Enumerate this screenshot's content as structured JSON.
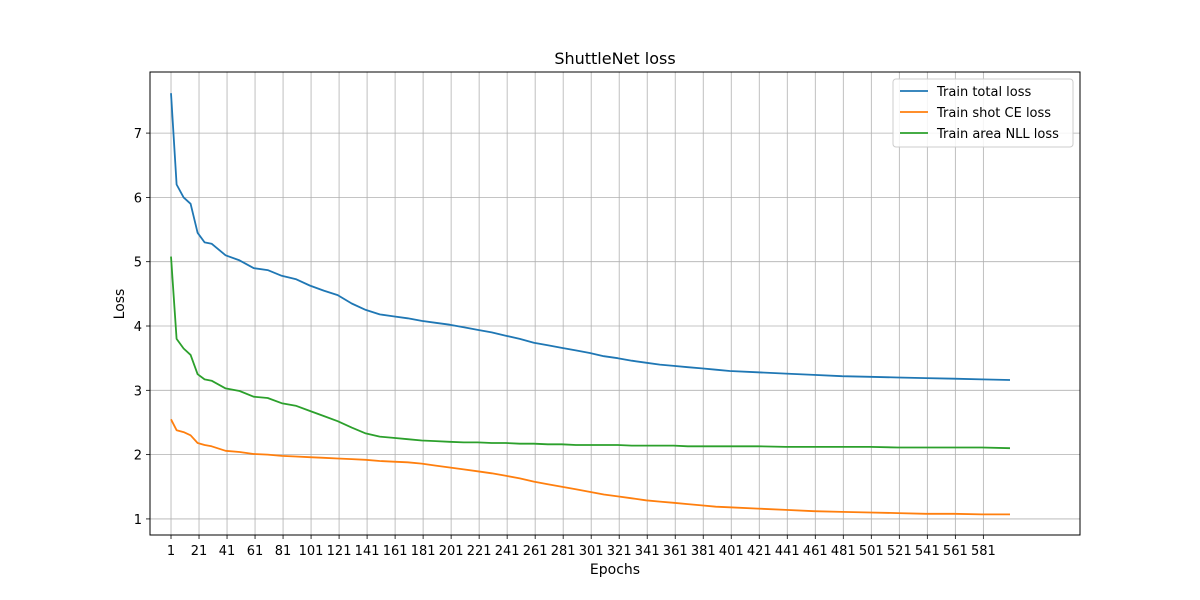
{
  "chart_data": {
    "type": "line",
    "title": "ShuttleNet loss",
    "xlabel": "Epochs",
    "ylabel": "Loss",
    "xlim": [
      -14,
      650
    ],
    "ylim": [
      0.75,
      7.95
    ],
    "grid": true,
    "legend_position": "top-right",
    "x_ticks": [
      "1",
      "21",
      "41",
      "61",
      "81",
      "101",
      "121",
      "141",
      "161",
      "181",
      "201",
      "221",
      "241",
      "261",
      "281",
      "301",
      "321",
      "341",
      "361",
      "381",
      "401",
      "421",
      "441",
      "461",
      "481",
      "501",
      "521",
      "541",
      "561",
      "581"
    ],
    "y_ticks": [
      "1",
      "2",
      "3",
      "4",
      "5",
      "6",
      "7"
    ],
    "x": [
      1,
      5,
      10,
      15,
      20,
      25,
      30,
      40,
      50,
      60,
      70,
      80,
      90,
      100,
      110,
      120,
      130,
      140,
      150,
      160,
      170,
      180,
      190,
      200,
      210,
      220,
      230,
      240,
      250,
      260,
      270,
      280,
      290,
      300,
      310,
      320,
      330,
      340,
      350,
      360,
      370,
      380,
      390,
      400,
      420,
      440,
      460,
      480,
      500,
      520,
      540,
      560,
      580,
      600
    ],
    "series": [
      {
        "name": "Train total loss",
        "color": "#1f77b4",
        "values": [
          7.62,
          6.2,
          6.0,
          5.9,
          5.45,
          5.3,
          5.28,
          5.1,
          5.02,
          4.9,
          4.87,
          4.78,
          4.73,
          4.63,
          4.55,
          4.48,
          4.35,
          4.25,
          4.18,
          4.15,
          4.12,
          4.08,
          4.05,
          4.02,
          3.98,
          3.94,
          3.9,
          3.85,
          3.8,
          3.74,
          3.7,
          3.66,
          3.62,
          3.58,
          3.53,
          3.5,
          3.46,
          3.43,
          3.4,
          3.38,
          3.36,
          3.34,
          3.32,
          3.3,
          3.28,
          3.26,
          3.24,
          3.22,
          3.21,
          3.2,
          3.19,
          3.18,
          3.17,
          3.16
        ]
      },
      {
        "name": "Train shot CE loss",
        "color": "#ff7f0e",
        "values": [
          2.55,
          2.38,
          2.35,
          2.3,
          2.18,
          2.15,
          2.13,
          2.06,
          2.04,
          2.01,
          2.0,
          1.98,
          1.97,
          1.96,
          1.95,
          1.94,
          1.93,
          1.92,
          1.9,
          1.89,
          1.88,
          1.86,
          1.83,
          1.8,
          1.77,
          1.74,
          1.71,
          1.67,
          1.63,
          1.58,
          1.54,
          1.5,
          1.46,
          1.42,
          1.38,
          1.35,
          1.32,
          1.29,
          1.27,
          1.25,
          1.23,
          1.21,
          1.19,
          1.18,
          1.16,
          1.14,
          1.12,
          1.11,
          1.1,
          1.09,
          1.08,
          1.08,
          1.07,
          1.07
        ]
      },
      {
        "name": "Train area NLL loss",
        "color": "#2ca02c",
        "values": [
          5.08,
          3.8,
          3.65,
          3.55,
          3.25,
          3.17,
          3.15,
          3.03,
          2.99,
          2.9,
          2.88,
          2.8,
          2.76,
          2.68,
          2.6,
          2.52,
          2.42,
          2.33,
          2.28,
          2.26,
          2.24,
          2.22,
          2.21,
          2.2,
          2.19,
          2.19,
          2.18,
          2.18,
          2.17,
          2.17,
          2.16,
          2.16,
          2.15,
          2.15,
          2.15,
          2.15,
          2.14,
          2.14,
          2.14,
          2.14,
          2.13,
          2.13,
          2.13,
          2.13,
          2.13,
          2.12,
          2.12,
          2.12,
          2.12,
          2.11,
          2.11,
          2.11,
          2.11,
          2.1
        ]
      }
    ]
  }
}
